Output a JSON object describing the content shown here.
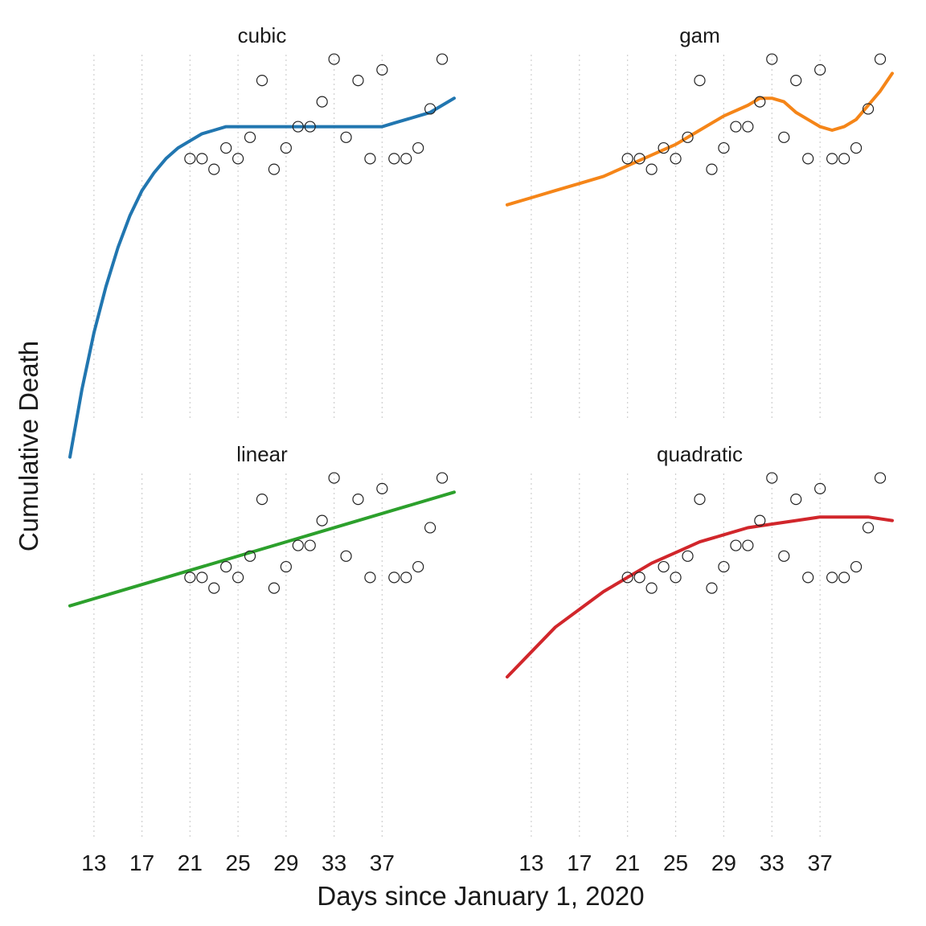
{
  "chart_data": {
    "type": "scatter",
    "xlabel": "Days since January 1, 2020",
    "ylabel": "Cumulative Death",
    "x_ticks": [
      13,
      17,
      21,
      25,
      29,
      33,
      37
    ],
    "xlim": [
      11,
      43
    ],
    "ylim": [
      0,
      1
    ],
    "grid": "vertical dotted",
    "points": {
      "x": [
        21,
        22,
        23,
        24,
        25,
        26,
        27,
        28,
        29,
        30,
        31,
        32,
        33,
        34,
        35,
        36,
        37,
        38,
        39,
        40,
        41,
        42
      ],
      "y": [
        0.73,
        0.73,
        0.7,
        0.76,
        0.73,
        0.79,
        0.95,
        0.7,
        0.76,
        0.82,
        0.82,
        0.89,
        1.01,
        0.79,
        0.95,
        0.73,
        0.98,
        0.73,
        0.73,
        0.76,
        0.87,
        1.01
      ]
    },
    "panels": [
      {
        "title": "cubic",
        "color": "#2176b0",
        "fit": {
          "x": [
            11,
            12,
            13,
            14,
            15,
            16,
            17,
            18,
            19,
            20,
            21,
            22,
            23,
            24,
            25,
            26,
            27,
            28,
            29,
            30,
            31,
            32,
            33,
            34,
            35,
            36,
            37,
            38,
            39,
            40,
            41,
            42,
            43
          ],
          "y": [
            -0.11,
            0.08,
            0.24,
            0.37,
            0.48,
            0.57,
            0.64,
            0.69,
            0.73,
            0.76,
            0.78,
            0.8,
            0.81,
            0.82,
            0.82,
            0.82,
            0.82,
            0.82,
            0.82,
            0.82,
            0.82,
            0.82,
            0.82,
            0.82,
            0.82,
            0.82,
            0.82,
            0.83,
            0.84,
            0.85,
            0.86,
            0.88,
            0.9
          ]
        }
      },
      {
        "title": "gam",
        "color": "#f58518",
        "fit": {
          "x": [
            11,
            13,
            15,
            17,
            19,
            21,
            23,
            25,
            27,
            29,
            31,
            32,
            33,
            34,
            35,
            36,
            37,
            38,
            39,
            40,
            41,
            42,
            43
          ],
          "y": [
            0.6,
            0.62,
            0.64,
            0.66,
            0.68,
            0.71,
            0.74,
            0.77,
            0.81,
            0.85,
            0.88,
            0.9,
            0.9,
            0.89,
            0.86,
            0.84,
            0.82,
            0.81,
            0.82,
            0.84,
            0.88,
            0.92,
            0.97
          ]
        }
      },
      {
        "title": "linear",
        "color": "#2ca02c",
        "fit": {
          "x": [
            11,
            43
          ],
          "y": [
            0.65,
            0.97
          ]
        }
      },
      {
        "title": "quadratic",
        "color": "#d1262b",
        "fit": {
          "x": [
            11,
            13,
            15,
            17,
            19,
            21,
            23,
            25,
            27,
            29,
            31,
            33,
            35,
            37,
            39,
            41,
            43
          ],
          "y": [
            0.45,
            0.52,
            0.59,
            0.64,
            0.69,
            0.73,
            0.77,
            0.8,
            0.83,
            0.85,
            0.87,
            0.88,
            0.89,
            0.9,
            0.9,
            0.9,
            0.89
          ]
        }
      }
    ]
  }
}
